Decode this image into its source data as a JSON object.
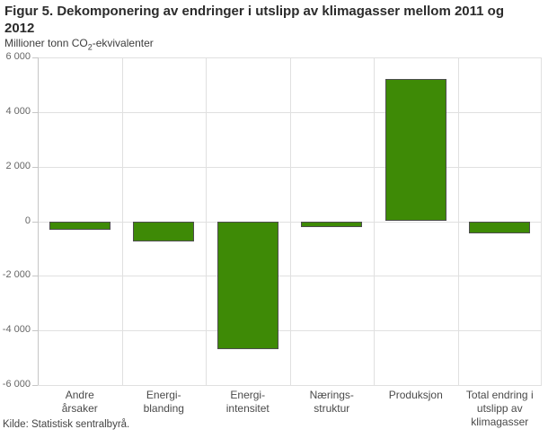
{
  "figure": {
    "title": "Figur 5. Dekomponering av endringer i utslipp av klimagasser mellom 2011 og 2012",
    "title_lines": [
      "Figur 5. Dekomponering av endringer i utslipp av klimagasser mellom 2011 og",
      "2012"
    ],
    "subtitle": {
      "pre": "Millioner tonn CO",
      "sub": "2",
      "post": "-ekvivalenter"
    },
    "source": "Kilde: Statistisk sentralbyrå."
  },
  "colors": {
    "bar_fill": "#3e8a06",
    "bar_border": "#4d4d4d",
    "gridline": "#e0e0e0",
    "axis_line": "#c6c6c6",
    "title_text": "#2b2b2b",
    "tick_text": "#666666",
    "category_text": "#4a4a4a",
    "background": "#ffffff"
  },
  "chart_data": {
    "type": "bar",
    "title": "Figur 5. Dekomponering av endringer i utslipp av klimagasser mellom 2011 og 2012",
    "ylabel": "Millioner tonn CO2-ekvivalenter",
    "categories": [
      "Andre årsaker",
      "Energi-blanding",
      "Energi-intensitet",
      "Nærings-struktur",
      "Produksjon",
      "Total endring i utslipp av klimagasser"
    ],
    "category_lines": [
      [
        "Andre",
        "årsaker"
      ],
      [
        "Energi-",
        "blanding"
      ],
      [
        "Energi-",
        "intensitet"
      ],
      [
        "Nærings-",
        "struktur"
      ],
      [
        "Produksjon"
      ],
      [
        "Total endring i",
        "utslipp av",
        "klimagasser"
      ]
    ],
    "values": [
      -300,
      -750,
      -4700,
      -200,
      5200,
      -450
    ],
    "ylim": [
      -6000,
      6000
    ],
    "ytick_step": 2000,
    "ytick_labels": [
      "6 000",
      "4 000",
      "2 000",
      "0",
      "-2 000",
      "-4 000",
      "-6 000"
    ],
    "grid": true,
    "legend": "none",
    "bar_color": "#3e8a06"
  }
}
